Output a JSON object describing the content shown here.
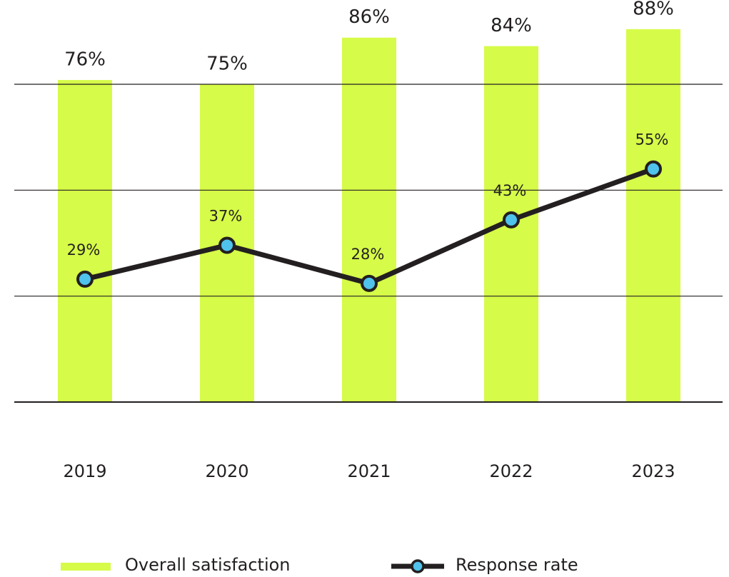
{
  "chart_data": {
    "type": "bar",
    "categories": [
      "2019",
      "2020",
      "2021",
      "2022",
      "2023"
    ],
    "series": [
      {
        "name": "Overall satisfaction",
        "type": "bar",
        "color": "#d6fb48",
        "values": [
          76,
          75,
          86,
          84,
          88
        ],
        "value_labels": [
          "76%",
          "75%",
          "86%",
          "84%",
          "88%"
        ]
      },
      {
        "name": "Response rate",
        "type": "line",
        "color": "#231f20",
        "marker_color": "#4fc3ec",
        "values": [
          29,
          37,
          28,
          43,
          55
        ],
        "value_labels": [
          "29%",
          "37%",
          "28%",
          "43%",
          "55%"
        ]
      }
    ],
    "ylim": [
      0,
      75
    ],
    "yticks": [
      0,
      25,
      50,
      75
    ],
    "grid": true,
    "legend": "bottom"
  }
}
